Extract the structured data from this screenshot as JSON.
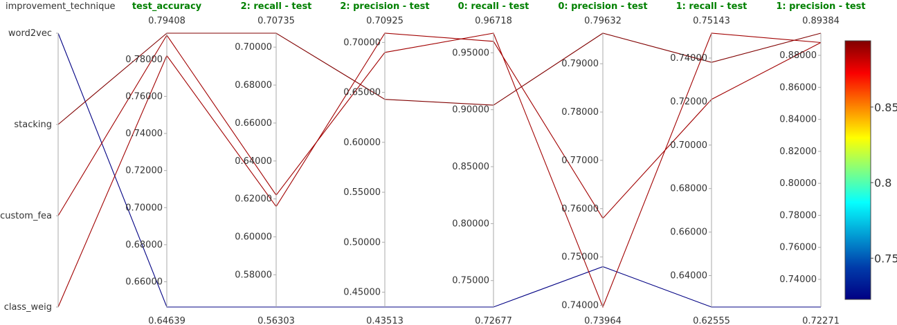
{
  "chart_data": {
    "type": "parallel_coordinates",
    "color_scale": "jet",
    "colorbar": {
      "range": [
        0.72271,
        0.89384
      ],
      "tick_values": [
        0.75,
        0.8,
        0.85
      ],
      "tick_labels": [
        "0.75",
        "0.8",
        "0.85"
      ]
    },
    "dimensions": [
      {
        "label": "improvement_technique",
        "kind": "categorical",
        "categories": [
          "word2vec",
          "stacking",
          "custom_fea",
          "class_weig"
        ]
      },
      {
        "label": "test_accuracy",
        "kind": "numeric",
        "range": [
          0.64639,
          0.79408
        ],
        "range_labels": [
          "0.79408",
          "0.64639"
        ],
        "ticks": [
          0.66,
          0.68,
          0.7,
          0.72,
          0.74,
          0.76,
          0.78
        ],
        "tick_labels": [
          "0.66000",
          "0.68000",
          "0.70000",
          "0.72000",
          "0.74000",
          "0.76000",
          "0.78000"
        ]
      },
      {
        "label": "2: recall - test",
        "kind": "numeric",
        "range": [
          0.56303,
          0.70735
        ],
        "range_labels": [
          "0.70735",
          "0.56303"
        ],
        "ticks": [
          0.58,
          0.6,
          0.62,
          0.64,
          0.66,
          0.68,
          0.7
        ],
        "tick_labels": [
          "0.58000",
          "0.60000",
          "0.62000",
          "0.64000",
          "0.66000",
          "0.68000",
          "0.70000"
        ]
      },
      {
        "label": "2: precision - test",
        "kind": "numeric",
        "range": [
          0.43513,
          0.70925
        ],
        "range_labels": [
          "0.70925",
          "0.43513"
        ],
        "ticks": [
          0.45,
          0.5,
          0.55,
          0.6,
          0.65,
          0.7
        ],
        "tick_labels": [
          "0.45000",
          "0.50000",
          "0.55000",
          "0.60000",
          "0.65000",
          "0.70000"
        ]
      },
      {
        "label": "0: recall - test",
        "kind": "numeric",
        "range": [
          0.72677,
          0.96718
        ],
        "range_labels": [
          "0.96718",
          "0.72677"
        ],
        "ticks": [
          0.75,
          0.8,
          0.85,
          0.9,
          0.95
        ],
        "tick_labels": [
          "0.75000",
          "0.80000",
          "0.85000",
          "0.90000",
          "0.95000"
        ]
      },
      {
        "label": "0: precision - test",
        "kind": "numeric",
        "range": [
          0.73964,
          0.79632
        ],
        "range_labels": [
          "0.79632",
          "0.73964"
        ],
        "ticks": [
          0.74,
          0.75,
          0.76,
          0.77,
          0.78,
          0.79
        ],
        "tick_labels": [
          "0.74000",
          "0.75000",
          "0.76000",
          "0.77000",
          "0.78000",
          "0.79000"
        ]
      },
      {
        "label": "1: recall - test",
        "kind": "numeric",
        "range": [
          0.62555,
          0.75143
        ],
        "range_labels": [
          "0.75143",
          "0.62555"
        ],
        "ticks": [
          0.64,
          0.66,
          0.68,
          0.7,
          0.72,
          0.74
        ],
        "tick_labels": [
          "0.64000",
          "0.66000",
          "0.68000",
          "0.70000",
          "0.72000",
          "0.74000"
        ]
      },
      {
        "label": "1: precision - test",
        "kind": "numeric",
        "range": [
          0.72271,
          0.89384
        ],
        "range_labels": [
          "0.89384",
          "0.72271"
        ],
        "ticks": [
          0.74,
          0.76,
          0.78,
          0.8,
          0.82,
          0.84,
          0.86,
          0.88
        ],
        "tick_labels": [
          "0.74000",
          "0.76000",
          "0.78000",
          "0.80000",
          "0.82000",
          "0.84000",
          "0.86000",
          "0.88000"
        ]
      }
    ],
    "rows": [
      {
        "improvement_technique": "word2vec",
        "values": [
          0.64639,
          0.56303,
          0.43513,
          0.72677,
          0.748,
          0.62555,
          0.72271
        ],
        "color_value": 0.72271
      },
      {
        "improvement_technique": "stacking",
        "values": [
          0.79408,
          0.70735,
          0.643,
          0.904,
          0.79632,
          0.738,
          0.89384
        ],
        "color_value": 0.89384
      },
      {
        "improvement_technique": "custom_fea",
        "values": [
          0.793,
          0.622,
          0.69,
          0.96718,
          0.73964,
          0.75143,
          0.888
        ],
        "color_value": 0.888
      },
      {
        "improvement_technique": "class_weig",
        "values": [
          0.782,
          0.616,
          0.70925,
          0.96,
          0.758,
          0.721,
          0.888
        ],
        "color_value": 0.888
      }
    ]
  }
}
